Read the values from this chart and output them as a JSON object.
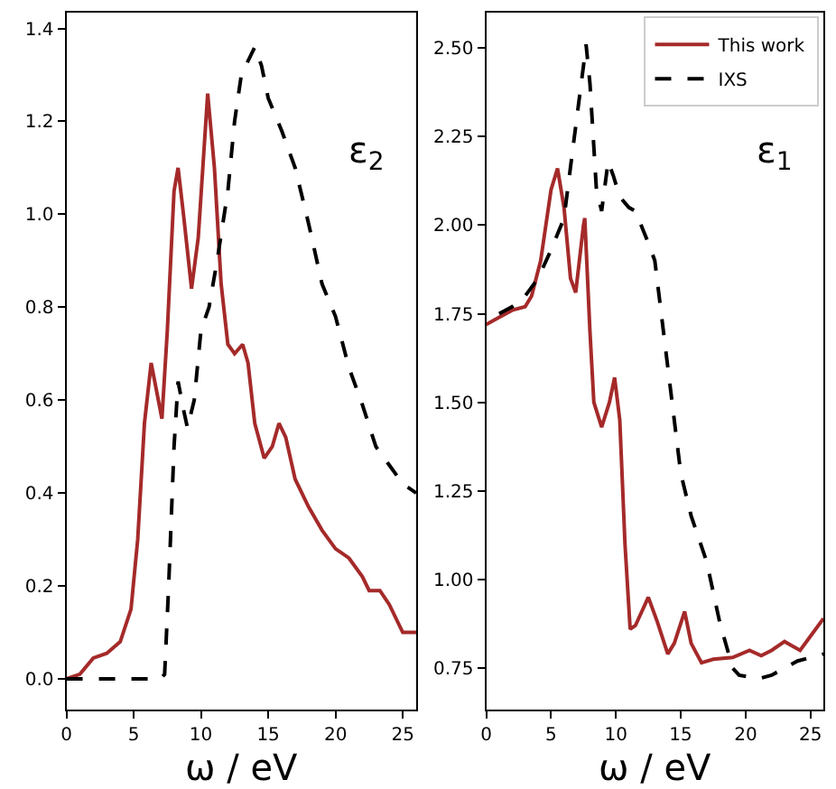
{
  "chart_data": [
    {
      "type": "line",
      "xlabel": "ω / eV",
      "annotations": [
        "ε$_{2}$"
      ],
      "xlim": [
        0,
        26
      ],
      "ylim": [
        -0.066,
        1.434
      ],
      "xticks": [
        0,
        5,
        10,
        15,
        20,
        25
      ],
      "yticks": [
        {
          "value": 0,
          "label": "0.0"
        },
        0.2,
        0.4,
        0.6,
        0.8,
        {
          "value": 1,
          "label": "1.0"
        },
        1.2,
        1.4
      ],
      "legend": false,
      "series": [
        {
          "color": "#a52a2a",
          "line_style": "solid",
          "x": [
            0,
            1,
            2,
            3,
            4,
            4.8,
            5.3,
            5.8,
            6.3,
            6.7,
            7.1,
            7.5,
            8.0,
            8.3,
            8.7,
            9.3,
            9.8,
            10.5,
            11.0,
            11.5,
            12.0,
            12.5,
            13.1,
            13.5,
            14,
            14.7,
            15.3,
            15.8,
            16.3,
            17,
            18,
            19,
            20,
            21,
            22,
            22.5,
            23.3,
            24,
            25,
            26
          ],
          "values": [
            0,
            0.01,
            0.045,
            0.055,
            0.08,
            0.15,
            0.3,
            0.55,
            0.68,
            0.62,
            0.56,
            0.75,
            1.05,
            1.1,
            1.0,
            0.84,
            0.95,
            1.26,
            1.1,
            0.85,
            0.72,
            0.7,
            0.72,
            0.68,
            0.55,
            0.475,
            0.5,
            0.55,
            0.52,
            0.43,
            0.37,
            0.32,
            0.28,
            0.26,
            0.22,
            0.19,
            0.19,
            0.16,
            0.1,
            0.1
          ]
        },
        {
          "color": "#000000",
          "line_style": "dashed",
          "x": [
            0,
            7,
            7.3,
            7.6,
            8.0,
            8.3,
            8.7,
            9.0,
            9.5,
            10,
            10.6,
            11.2,
            12,
            12.5,
            13,
            14,
            14.5,
            15,
            16,
            17,
            18,
            19,
            20,
            21,
            22,
            23,
            24,
            25,
            26
          ],
          "values": [
            0,
            0,
            0.01,
            0.2,
            0.5,
            0.64,
            0.58,
            0.54,
            0.6,
            0.75,
            0.8,
            0.9,
            1.05,
            1.2,
            1.3,
            1.36,
            1.32,
            1.25,
            1.18,
            1.1,
            0.98,
            0.85,
            0.78,
            0.67,
            0.59,
            0.5,
            0.46,
            0.42,
            0.4
          ]
        }
      ]
    },
    {
      "type": "line",
      "xlabel": "ω / eV",
      "annotations": [
        "ε$_{1}$"
      ],
      "xlim": [
        0,
        26
      ],
      "ylim": [
        0.633,
        2.6
      ],
      "xticks": [
        0,
        5,
        10,
        15,
        20,
        25
      ],
      "yticks": [
        0.75,
        {
          "value": 1,
          "label": "1.00"
        },
        1.25,
        {
          "value": 1.5,
          "label": "1.50"
        },
        1.75,
        {
          "value": 2,
          "label": "2.00"
        },
        2.25,
        {
          "value": 2.5,
          "label": "2.50"
        }
      ],
      "legend": "top right",
      "series": [
        {
          "name": "This work",
          "color": "#a52a2a",
          "line_style": "solid",
          "x": [
            0,
            1,
            2,
            3,
            3.5,
            4.2,
            5,
            5.5,
            6,
            6.5,
            6.9,
            7.5,
            7.6,
            8,
            8.3,
            8.9,
            9.5,
            9.9,
            10.3,
            10.7,
            11.1,
            11.5,
            12.5,
            13.2,
            14,
            14.5,
            15.3,
            15.8,
            16.6,
            17.5,
            19,
            20.3,
            21.2,
            22,
            23,
            24.2,
            25,
            26
          ],
          "values": [
            1.72,
            1.74,
            1.76,
            1.77,
            1.8,
            1.9,
            2.1,
            2.16,
            2.05,
            1.85,
            1.81,
            2.0,
            2.02,
            1.7,
            1.5,
            1.43,
            1.5,
            1.57,
            1.45,
            1.1,
            0.86,
            0.87,
            0.95,
            0.88,
            0.79,
            0.82,
            0.91,
            0.82,
            0.765,
            0.775,
            0.78,
            0.8,
            0.785,
            0.8,
            0.825,
            0.8,
            0.84,
            0.89
          ]
        },
        {
          "name": "IXS",
          "color": "#000000",
          "line_style": "dashed",
          "x": [
            1,
            2,
            3,
            4,
            5,
            6,
            6.8,
            7.5,
            7.7,
            8.0,
            8.5,
            8.9,
            9.4,
            9.8,
            10.3,
            11,
            11.5,
            12.5,
            13,
            14,
            15,
            15.8,
            17,
            18,
            19,
            19.5,
            21,
            22,
            23,
            24,
            26
          ],
          "values": [
            1.75,
            1.77,
            1.8,
            1.85,
            1.93,
            2.02,
            2.25,
            2.45,
            2.51,
            2.4,
            2.1,
            2.04,
            2.18,
            2.14,
            2.08,
            2.05,
            2.04,
            1.95,
            1.9,
            1.6,
            1.3,
            1.18,
            1.05,
            0.88,
            0.75,
            0.73,
            0.72,
            0.73,
            0.75,
            0.77,
            0.79
          ]
        }
      ]
    }
  ]
}
